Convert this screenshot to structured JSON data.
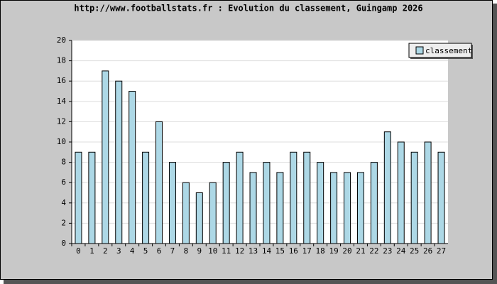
{
  "chart_data": {
    "type": "bar",
    "title": "http://www.footballstats.fr : Evolution du classement, Guingamp 2026",
    "categories": [
      "0",
      "1",
      "2",
      "3",
      "4",
      "5",
      "6",
      "7",
      "8",
      "9",
      "10",
      "11",
      "12",
      "13",
      "14",
      "15",
      "16",
      "17",
      "18",
      "19",
      "20",
      "21",
      "22",
      "23",
      "24",
      "25",
      "26",
      "27"
    ],
    "series": [
      {
        "name": "classement",
        "color": "#add8e6",
        "values": [
          9,
          9,
          17,
          16,
          15,
          9,
          12,
          8,
          6,
          5,
          6,
          8,
          9,
          7,
          8,
          7,
          9,
          9,
          8,
          7,
          7,
          7,
          8,
          11,
          10,
          9,
          10,
          9
        ]
      }
    ],
    "ylim": [
      0,
      20
    ],
    "yticks": [
      0,
      2,
      4,
      6,
      8,
      10,
      12,
      14,
      16,
      18,
      20
    ],
    "grid": true,
    "legend": "top-right"
  }
}
